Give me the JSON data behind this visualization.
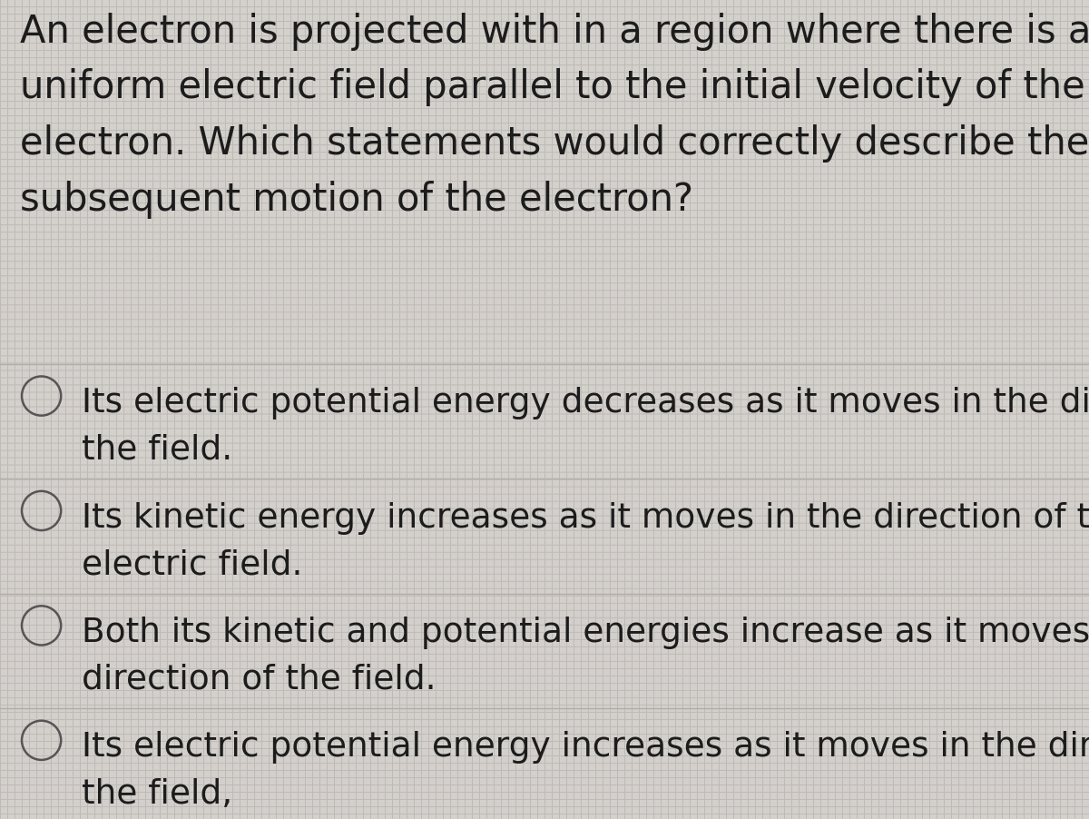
{
  "background_color": "#d4d0cc",
  "grid_color": "#bebab6",
  "question": "An electron is projected with in a region where there is a\nuniform electric field parallel to the initial velocity of the\nelectron. Which statements would correctly describe the\nsubsequent motion of the electron?",
  "options": [
    "Its electric potential energy decreases as it moves in the direction of\nthe field.",
    "Its kinetic energy increases as it moves in the direction of the\nelectric field.",
    "Both its kinetic and potential energies increase as it moves in the\ndirection of the field.",
    "Its electric potential energy increases as it moves in the direction of\nthe field,"
  ],
  "question_font_size": 30,
  "option_font_size": 27,
  "text_color": "#1c1c1c",
  "circle_color": "#555555",
  "divider_color": "#b0aca8",
  "fig_width": 12.0,
  "fig_height": 9.03,
  "dpi": 100
}
